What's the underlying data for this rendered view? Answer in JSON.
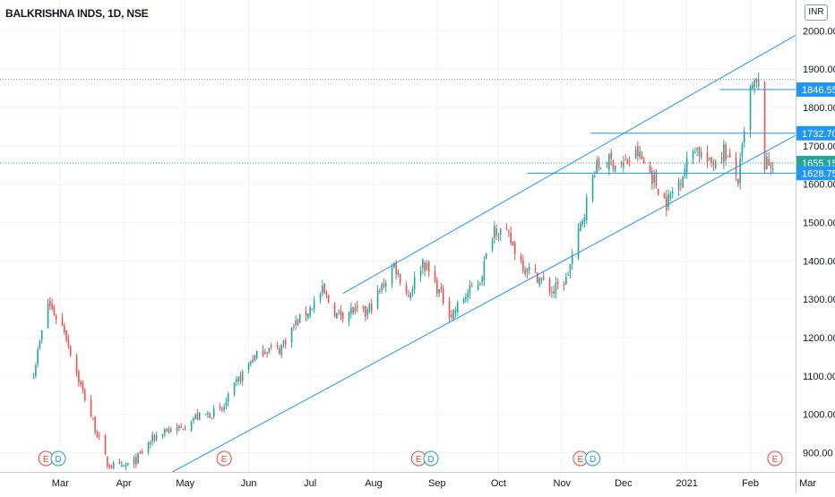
{
  "header": {
    "symbol_label": "BALKRISHNA INDS, 1D, NSE",
    "currency": "INR"
  },
  "colors": {
    "up": "#26a69a",
    "down": "#ef5350",
    "trendline": "#2196f3",
    "last_price": "#26a69a",
    "event_earnings": "#f44336",
    "event_dividend": "#2196f3"
  },
  "chart_data": {
    "type": "candlestick",
    "title": "BALKRISHNA INDS, 1D, NSE",
    "ylim": [
      850,
      2080
    ],
    "y_ticks": [
      900,
      1000,
      1100,
      1200,
      1300,
      1400,
      1500,
      1600,
      1700,
      1800,
      1900,
      2000
    ],
    "y_tick_labels": [
      "900.00",
      "1000.00",
      "1100.00",
      "1200.00",
      "1300.00",
      "1400.00",
      "1500.00",
      "1600.00",
      "1700.00",
      "1800.00",
      "1900.00",
      "2000.00"
    ],
    "x_tick_labels": [
      "Mar",
      "Apr",
      "May",
      "Jun",
      "Jul",
      "Aug",
      "Sep",
      "Oct",
      "Nov",
      "Dec",
      "2021",
      "Feb",
      "Mar"
    ],
    "x_tick_dates": [
      "2020-03-01",
      "2020-04-01",
      "2020-05-01",
      "2020-06-01",
      "2020-07-01",
      "2020-08-01",
      "2020-09-01",
      "2020-10-01",
      "2020-11-01",
      "2020-12-01",
      "2021-01-01",
      "2021-02-01",
      "2021-03-01"
    ],
    "series_anchors": [
      [
        "2020-02-17",
        1110
      ],
      [
        "2020-02-24",
        1290
      ],
      [
        "2020-03-03",
        1220
      ],
      [
        "2020-03-10",
        1090
      ],
      [
        "2020-03-17",
        980
      ],
      [
        "2020-03-24",
        870
      ],
      [
        "2020-03-31",
        860
      ],
      [
        "2020-04-07",
        880
      ],
      [
        "2020-04-14",
        930
      ],
      [
        "2020-04-21",
        960
      ],
      [
        "2020-04-28",
        960
      ],
      [
        "2020-05-05",
        990
      ],
      [
        "2020-05-12",
        1000
      ],
      [
        "2020-05-19",
        1010
      ],
      [
        "2020-05-26",
        1080
      ],
      [
        "2020-06-02",
        1140
      ],
      [
        "2020-06-09",
        1170
      ],
      [
        "2020-06-16",
        1170
      ],
      [
        "2020-06-23",
        1230
      ],
      [
        "2020-06-30",
        1270
      ],
      [
        "2020-07-07",
        1320
      ],
      [
        "2020-07-14",
        1260
      ],
      [
        "2020-07-21",
        1270
      ],
      [
        "2020-07-28",
        1260
      ],
      [
        "2020-08-04",
        1320
      ],
      [
        "2020-08-11",
        1390
      ],
      [
        "2020-08-18",
        1310
      ],
      [
        "2020-08-25",
        1400
      ],
      [
        "2020-09-01",
        1330
      ],
      [
        "2020-09-08",
        1260
      ],
      [
        "2020-09-15",
        1310
      ],
      [
        "2020-09-22",
        1350
      ],
      [
        "2020-09-29",
        1490
      ],
      [
        "2020-10-06",
        1460
      ],
      [
        "2020-10-13",
        1390
      ],
      [
        "2020-10-20",
        1360
      ],
      [
        "2020-10-27",
        1320
      ],
      [
        "2020-11-03",
        1350
      ],
      [
        "2020-11-10",
        1490
      ],
      [
        "2020-11-17",
        1640
      ],
      [
        "2020-11-24",
        1660
      ],
      [
        "2020-12-01",
        1650
      ],
      [
        "2020-12-08",
        1680
      ],
      [
        "2020-12-15",
        1620
      ],
      [
        "2020-12-22",
        1550
      ],
      [
        "2020-12-29",
        1620
      ],
      [
        "2021-01-05",
        1700
      ],
      [
        "2021-01-12",
        1650
      ],
      [
        "2021-01-19",
        1690
      ],
      [
        "2021-01-26",
        1610
      ],
      [
        "2021-02-01",
        1846
      ],
      [
        "2021-02-05",
        1860
      ],
      [
        "2021-02-08",
        1650
      ],
      [
        "2021-02-12",
        1655
      ]
    ],
    "last_price": 1655.15,
    "price_labels": [
      {
        "value": 1846.55,
        "text": "1846.55",
        "kind": "level"
      },
      {
        "value": 1732.7,
        "text": "1732.70",
        "kind": "level"
      },
      {
        "value": 1655.15,
        "text": "1655.15",
        "kind": "last"
      },
      {
        "value": 1628.75,
        "text": "1628.75",
        "kind": "level"
      }
    ],
    "horizontal_levels": [
      {
        "value": 1846.55,
        "from": "2021-01-17",
        "to": "2021-03-20"
      },
      {
        "value": 1732.7,
        "from": "2020-11-15",
        "to": "2021-03-20"
      },
      {
        "value": 1628.75,
        "from": "2020-10-15",
        "to": "2021-03-20"
      }
    ],
    "dotted_levels": [
      1873,
      1655.15
    ],
    "trendlines": [
      {
        "from": [
          "2020-04-23",
          845
        ],
        "to": [
          "2021-03-20",
          1727
        ]
      },
      {
        "from": [
          "2020-07-17",
          1315
        ],
        "to": [
          "2021-03-20",
          1988
        ]
      }
    ],
    "events": [
      {
        "label": "E",
        "kind": "earnings",
        "date": "2020-02-23"
      },
      {
        "label": "D",
        "kind": "dividend",
        "date": "2020-02-29"
      },
      {
        "label": "E",
        "kind": "earnings",
        "date": "2020-05-20"
      },
      {
        "label": "E",
        "kind": "earnings",
        "date": "2020-08-23"
      },
      {
        "label": "D",
        "kind": "dividend",
        "date": "2020-08-29"
      },
      {
        "label": "E",
        "kind": "earnings",
        "date": "2020-11-10"
      },
      {
        "label": "D",
        "kind": "dividend",
        "date": "2020-11-16"
      },
      {
        "label": "E",
        "kind": "earnings",
        "date": "2021-02-13"
      }
    ]
  }
}
